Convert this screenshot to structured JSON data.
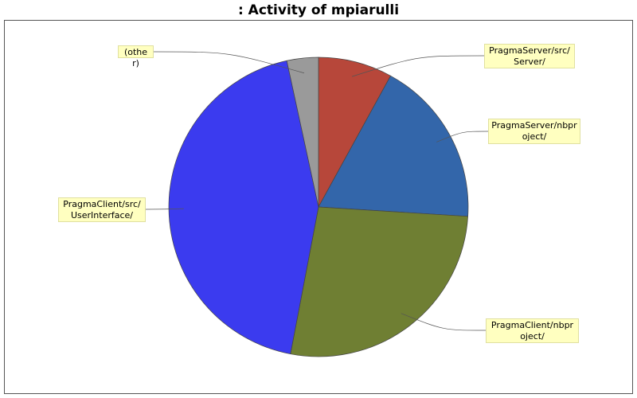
{
  "chart_data": {
    "type": "pie",
    "title": ": Activity of mpiarulli",
    "categories": [
      "PragmaServer/src/Server/",
      "PragmaServer/nbproject/",
      "PragmaClient/nbproject/",
      "PragmaClient/src/UserInterface/",
      "(other)"
    ],
    "values": [
      8,
      18,
      27,
      43.6,
      3.4
    ],
    "colors": [
      "#b7473a",
      "#3366aa",
      "#6f7f33",
      "#3b3bef",
      "#9a9a9a"
    ]
  }
}
